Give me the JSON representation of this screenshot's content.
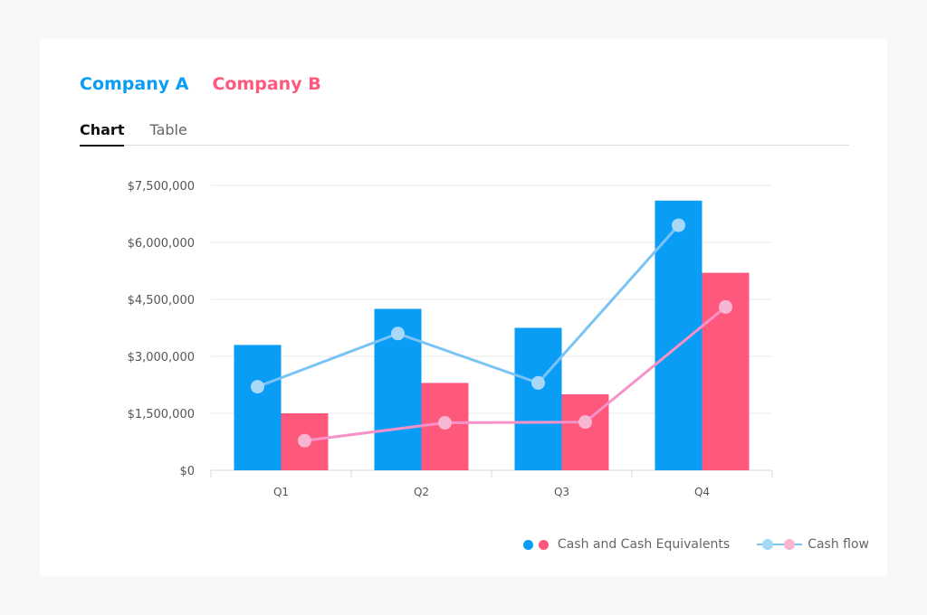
{
  "companies": [
    {
      "name": "Company A",
      "color": "#0a9df5"
    },
    {
      "name": "Company B",
      "color": "#ff587d"
    }
  ],
  "tabs": {
    "active": "Chart",
    "inactive": "Table"
  },
  "legend": {
    "bars_label": "Cash and Cash Equivalents",
    "lines_label": "Cash flow"
  },
  "colors": {
    "line_a": "#7cc3f5",
    "line_b": "#f692c8",
    "point_a": "#a7d8f8",
    "point_b": "#f8b6d3",
    "grid": "#eaeaea",
    "axis_text": "#555555"
  },
  "chart_data": {
    "type": "bar",
    "categories": [
      "Q1",
      "Q2",
      "Q3",
      "Q4"
    ],
    "ylim": [
      0,
      7500000
    ],
    "yticks": [
      0,
      1500000,
      3000000,
      4500000,
      6000000,
      7500000
    ],
    "ytick_labels": [
      "$0",
      "$1,500,000",
      "$3,000,000",
      "$4,500,000",
      "$6,000,000",
      "$7,500,000"
    ],
    "grid": true,
    "legend_position": "bottom-right",
    "bar_series": [
      {
        "values": [
          3300000,
          4250000,
          3750000,
          7100000
        ]
      },
      {
        "values": [
          1500000,
          2300000,
          2000000,
          5200000
        ]
      }
    ],
    "line_series": [
      {
        "values": [
          2200000,
          3600000,
          2300000,
          6450000
        ]
      },
      {
        "values": [
          780000,
          1250000,
          1270000,
          4300000
        ]
      }
    ]
  }
}
